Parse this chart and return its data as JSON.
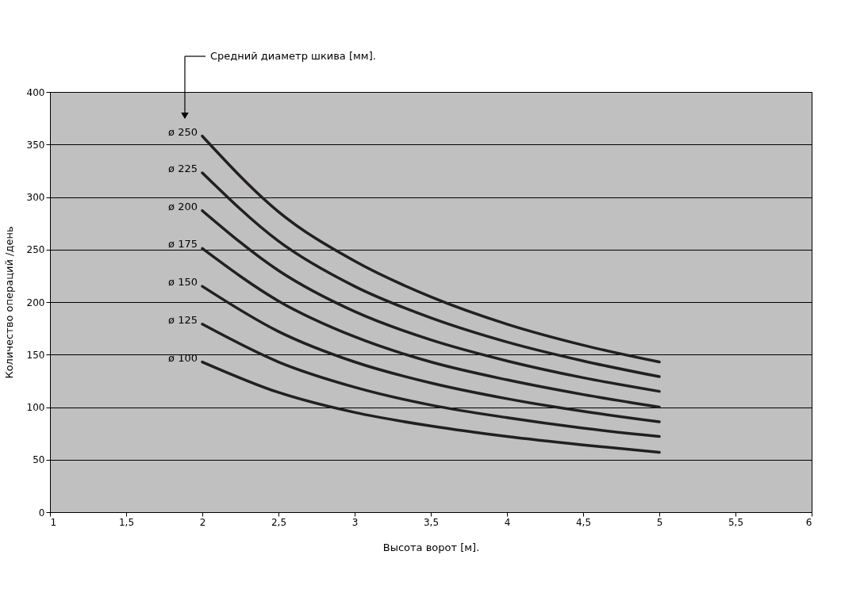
{
  "chart_data": {
    "type": "line",
    "xlabel": "Высота ворот [м].",
    "ylabel": "Количество операций /день",
    "x": [
      2,
      2.5,
      3,
      3.5,
      4,
      4.5,
      5
    ],
    "series": [
      {
        "name": "ø 250",
        "color": "#231f20",
        "values": [
          358,
          286,
          239,
          205,
          179,
          159,
          143
        ]
      },
      {
        "name": "ø 225",
        "color": "#231f20",
        "values": [
          323,
          258,
          215,
          185,
          162,
          144,
          129
        ]
      },
      {
        "name": "ø 200",
        "color": "#231f20",
        "values": [
          287,
          230,
          191,
          164,
          144,
          128,
          115
        ]
      },
      {
        "name": "ø 175",
        "color": "#231f20",
        "values": [
          251,
          201,
          167,
          143,
          126,
          112,
          100
        ]
      },
      {
        "name": "ø 150",
        "color": "#231f20",
        "values": [
          215,
          172,
          143,
          123,
          108,
          96,
          86
        ]
      },
      {
        "name": "ø 125",
        "color": "#231f20",
        "values": [
          179,
          143,
          119,
          102,
          90,
          80,
          72
        ]
      },
      {
        "name": "ø 100",
        "color": "#231f20",
        "values": [
          143,
          114,
          95,
          82,
          72,
          64,
          57
        ]
      }
    ],
    "xlim": [
      1,
      6
    ],
    "xticks": [
      1,
      {
        "value": 1.5,
        "label": "1,5"
      },
      2,
      {
        "value": 2.5,
        "label": "2,5"
      },
      3,
      {
        "value": 3.5,
        "label": "3,5"
      },
      4,
      {
        "value": 4.5,
        "label": "4,5"
      },
      5,
      {
        "value": 5.5,
        "label": "5,5"
      },
      6
    ],
    "ylim": [
      0,
      400
    ],
    "yticks": [
      0,
      50,
      100,
      150,
      200,
      250,
      300,
      350,
      400
    ],
    "grid": "y",
    "legend": false,
    "marker": "none",
    "line_style": "solid",
    "annotations": [
      "Средний диаметр шкива [мм]."
    ]
  }
}
